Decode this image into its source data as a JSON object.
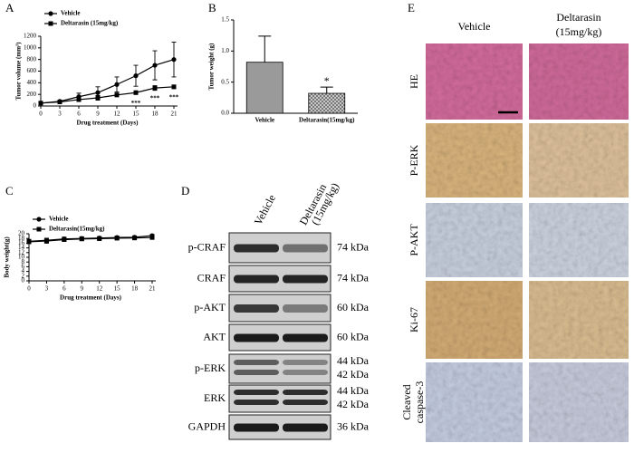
{
  "chart_data": [
    {
      "type": "line",
      "label": "A",
      "x_label": "Drug treatment (Days)",
      "y_label": "Tumor volume (mm³)",
      "x": [
        0,
        3,
        6,
        9,
        12,
        15,
        18,
        21
      ],
      "xlim": [
        0,
        21
      ],
      "xticks": [
        0,
        3,
        6,
        9,
        12,
        15,
        18,
        21
      ],
      "ylim": [
        0,
        1200
      ],
      "yticks": [
        0,
        200,
        400,
        600,
        800,
        1000,
        1200
      ],
      "legend": "upper left",
      "series": [
        {
          "name": "Vehicle",
          "color": "#000000",
          "marker": "circle",
          "values": [
            50,
            80,
            160,
            230,
            370,
            520,
            700,
            800
          ],
          "errors": [
            10,
            20,
            60,
            100,
            130,
            180,
            250,
            300
          ]
        },
        {
          "name": "Deltarasin (15mg/kg)",
          "color": "#000000",
          "marker": "square",
          "values": [
            50,
            70,
            110,
            140,
            190,
            230,
            310,
            330
          ],
          "errors": [
            10,
            15,
            30,
            40,
            30,
            30,
            40,
            30
          ]
        }
      ],
      "annotations": [
        {
          "text": "***",
          "x": 15
        },
        {
          "text": "***",
          "x": 18
        },
        {
          "text": "***",
          "x": 21
        }
      ]
    },
    {
      "type": "bar",
      "label": "B",
      "y_label": "Tumor weight (g)",
      "categories": [
        "Vehicle",
        "Deltarasin(15mg/kg)"
      ],
      "values": [
        0.82,
        0.32
      ],
      "errors": [
        0.42,
        0.1
      ],
      "color": "#9a9a9a",
      "ylim": [
        0,
        1.5
      ],
      "yticks": [
        {
          "value": 0,
          "label": "0.0"
        },
        0.5,
        {
          "value": 1,
          "label": "1.0"
        },
        1.5
      ],
      "annotations": [
        {
          "text": "*",
          "category": 1
        }
      ]
    },
    {
      "type": "line",
      "label": "C",
      "x_label": "Drug treatment (Days)",
      "y_label": "Body weight(g)",
      "x": [
        0,
        3,
        6,
        9,
        12,
        15,
        18,
        21
      ],
      "xlim": [
        0,
        21
      ],
      "xticks": [
        0,
        3,
        6,
        9,
        12,
        15,
        18,
        21
      ],
      "ylim": [
        0,
        20
      ],
      "yticks": [
        0,
        2,
        4,
        6,
        8,
        10,
        12,
        14,
        16,
        18,
        20
      ],
      "legend": "upper left",
      "series": [
        {
          "name": "Vehicle",
          "color": "#000000",
          "marker": "circle",
          "values": [
            16.8,
            17.2,
            17.8,
            18,
            18.2,
            18.4,
            18.5,
            19.2
          ],
          "errors": [
            0.8,
            0.9,
            0.8,
            0.7,
            0.6,
            0.6,
            0.6,
            0.5
          ]
        },
        {
          "name": "Deltarasin(15mg/kg)",
          "color": "#000000",
          "marker": "square",
          "values": [
            16.6,
            16.9,
            17.5,
            17.8,
            17.9,
            18.1,
            18.2,
            18.4
          ],
          "errors": [
            0.8,
            0.9,
            0.8,
            0.7,
            0.6,
            0.6,
            0.6,
            0.5
          ]
        }
      ],
      "annotations": []
    }
  ],
  "blot": {
    "label": "D",
    "columns": [
      [
        "Vehicle"
      ],
      [
        "Deltarasin",
        "(15mg/kg)"
      ]
    ],
    "rows": [
      {
        "name": "p-CRAF",
        "sizes": [
          "74 kDa"
        ]
      },
      {
        "name": "CRAF",
        "sizes": [
          "74 kDa"
        ]
      },
      {
        "name": "p-AKT",
        "sizes": [
          "60 kDa"
        ]
      },
      {
        "name": "AKT",
        "sizes": [
          "60 kDa"
        ]
      },
      {
        "name": "p-ERK",
        "sizes": [
          "44 kDa",
          "42 kDa"
        ]
      },
      {
        "name": "ERK",
        "sizes": [
          "44 kDa",
          "42 kDa"
        ]
      },
      {
        "name": "GAPDH",
        "sizes": [
          "36 kDa"
        ]
      }
    ]
  },
  "histology": {
    "label": "E",
    "columns": [
      [
        "Vehicle"
      ],
      [
        "Deltarasin",
        "(15mg/kg)"
      ]
    ],
    "rows": [
      [
        "HE"
      ],
      [
        "P-ERK"
      ],
      [
        "P-AKT"
      ],
      [
        "Ki-67"
      ],
      [
        "Cleaved",
        "caspase-3"
      ]
    ]
  }
}
